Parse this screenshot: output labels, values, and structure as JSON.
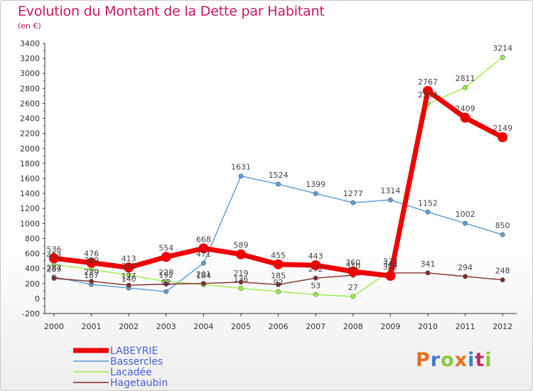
{
  "chart_data": {
    "type": "line",
    "title": "Evolution du Montant de la Dette par Habitant",
    "subtitle": "(en €)",
    "x": [
      "2000",
      "2001",
      "2002",
      "2003",
      "2004",
      "2005",
      "2006",
      "2007",
      "2008",
      "2009",
      "2010",
      "2011",
      "2012"
    ],
    "ylim": [
      -200,
      3400
    ],
    "yticks": [
      -200,
      0,
      200,
      400,
      600,
      800,
      1000,
      1200,
      1400,
      1600,
      1800,
      2000,
      2200,
      2400,
      2600,
      2800,
      3000,
      3200,
      3400
    ],
    "grid": false,
    "legend_position": "bottom-left",
    "series": [
      {
        "name": "LABEYRIE",
        "color": "#ee0000",
        "values": [
          536,
          476,
          413,
          554,
          668,
          589,
          455,
          443,
          360,
          302,
          2767,
          2409,
          2149
        ]
      },
      {
        "name": "Bassercles",
        "color": "#5b9bd5",
        "values": [
          287,
          187,
          140,
          92,
          471,
          1631,
          1524,
          1399,
          1277,
          1314,
          1152,
          1002,
          850
        ]
      },
      {
        "name": "Lacadée",
        "color": "#99ee44",
        "values": [
          453,
          389,
          310,
          228,
          184,
          136,
          92,
          53,
          27,
          373,
          2594,
          2811,
          3214
        ]
      },
      {
        "name": "Hagetaubin",
        "color": "#7f2a2a",
        "values": [
          269,
          229,
          177,
          192,
          201,
          219,
          185,
          272,
          310,
          341,
          341,
          294,
          248
        ]
      }
    ],
    "value_labels": [
      {
        "series": 0,
        "values": [
          "536",
          "476",
          "413",
          "554",
          "668",
          "589",
          "455",
          "443",
          "360",
          "302",
          "2767",
          "2409",
          "2149"
        ]
      },
      {
        "series": 1,
        "values": [
          "287",
          "187",
          "140",
          "92",
          "471",
          "1631",
          "1524",
          "1399",
          "1277",
          "1314",
          "1152",
          "1002",
          "850"
        ]
      },
      {
        "series": 2,
        "values": [
          "453",
          "389",
          "310",
          "228",
          "184",
          "136",
          "92",
          "53",
          "27",
          "373",
          "2594",
          "2811",
          "3214"
        ]
      },
      {
        "series": 3,
        "values": [
          "269",
          "229",
          "177",
          "192",
          "201",
          "219",
          "185",
          "272",
          "310",
          "341",
          "341",
          "294",
          "248"
        ]
      }
    ]
  },
  "logo": {
    "text": "Proxiti",
    "colors": [
      "#e8701a",
      "#3a7ed0",
      "#8dc63f",
      "#e8701a",
      "#3a7ed0",
      "#c02a6a",
      "#8dc63f"
    ]
  }
}
